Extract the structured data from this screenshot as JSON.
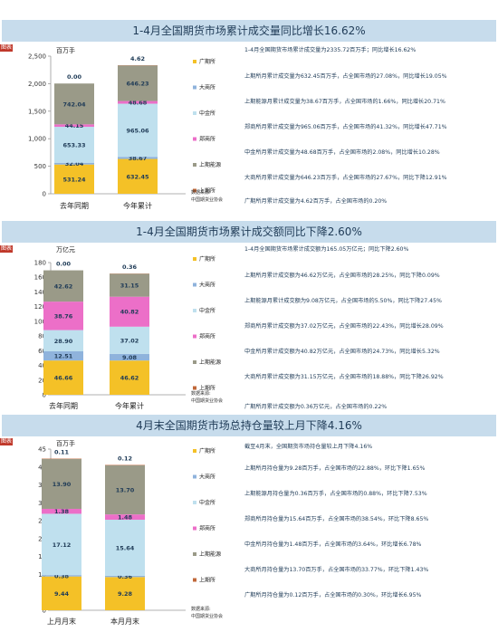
{
  "tag_label": "图表",
  "legend_labels": [
    "广期所",
    "大商所",
    "中金所",
    "郑商所",
    "上期能源",
    "上期所"
  ],
  "legend_colors": [
    "#f4c127",
    "#8fb3dc",
    "#bfe0ee",
    "#ec6fc8",
    "#9a9a88",
    "#c0683a"
  ],
  "source_label": "数据来源:",
  "source_org": "中国期货业协会",
  "panels": [
    {
      "title": "1-4月全国期货市场累计成交量同比增长16.62%",
      "unit": "百万手",
      "notes": [
        "1-4月全国期货市场累计成交量为2335.72百万手；同比增长16.62%",
        "上期所月累计成交量为632.45百万手，占全国市场的27.08%，同比增长19.05%",
        "上期能源月累计成交量为38.67百万手，占全国市场的1.66%，同比增长20.71%",
        "郑商所月累计成交量为965.06百万手，占全国市场的41.32%，同比增长47.71%",
        "中金所月累计成交量为48.68百万手，占全国市场的2.08%，同比增长10.28%",
        "大商所月累计成交量为646.23百万手，占全国市场的27.67%，同比下降12.91%",
        "广期所月累计成交量为4.62百万手，占全国市场的0.20%"
      ]
    },
    {
      "title": "1-4月全国期货市场累计成交额同比下降2.60%",
      "unit": "万亿元",
      "notes": [
        "1-4月全国期货市场累计成交额为165.05万亿元；同比下降2.60%",
        "上期所月累计成交额为46.62万亿元，占全国市场的28.25%，同比下降0.09%",
        "上期能源月累计成交额为9.08万亿元，占全国市场的5.50%，同比下降27.45%",
        "郑商所月累计成交额为37.02万亿元，占全国市场的22.43%，同比增长28.09%",
        "中金所月累计成交额为40.82万亿元，占全国市场的24.73%，同比增长5.32%",
        "大商所月累计成交额为31.15万亿元，占全国市场的18.88%，同比下降26.92%",
        "广期所月累计成交额为0.36万亿元，占全国市场的0.22%"
      ]
    },
    {
      "title": "4月末全国期货市场总持仓量较上月下降4.16%",
      "unit": "百万手",
      "notes": [
        "截至4月末，全国期货市场持仓量较上月下降4.16%",
        "上期所月持仓量为9.28百万手，占全国市场的22.88%，环比下降1.65%",
        "上期能源月持仓量为0.36百万手，占全国市场的0.88%，环比下降7.53%",
        "郑商所月持仓量为15.64百万手，占全国市场的38.54%，环比下降8.65%",
        "中金所月持仓量为1.48百万手，占全国市场的3.64%，环比增长6.78%",
        "大商所月持仓量为13.70百万手，占全国市场的33.77%，环比下降1.43%",
        "广期所月持仓量为0.12百万手，占全国市场的0.30%，环比增长6.95%"
      ]
    }
  ],
  "chart_data": [
    {
      "type": "bar",
      "stacked": true,
      "categories": [
        "去年同期",
        "今年累计"
      ],
      "ylim": [
        0,
        2500
      ],
      "yticks": [
        0,
        500,
        1000,
        1500,
        2000,
        2500
      ],
      "ylabel": "百万手",
      "series": [
        {
          "name": "上期所",
          "values": [
            531.24,
            632.45
          ]
        },
        {
          "name": "上期能源",
          "values": [
            32.04,
            38.67
          ]
        },
        {
          "name": "郑商所",
          "values": [
            653.33,
            965.06
          ]
        },
        {
          "name": "中金所",
          "values": [
            44.15,
            48.68
          ]
        },
        {
          "name": "大商所",
          "values": [
            742.04,
            646.23
          ]
        },
        {
          "name": "广期所",
          "values": [
            0.0,
            4.62
          ]
        }
      ]
    },
    {
      "type": "bar",
      "stacked": true,
      "categories": [
        "去年同期",
        "今年累计"
      ],
      "ylim": [
        0,
        180
      ],
      "yticks": [
        0,
        20,
        40,
        60,
        80,
        100,
        120,
        140,
        160,
        180
      ],
      "ylabel": "万亿元",
      "series": [
        {
          "name": "上期所",
          "values": [
            46.66,
            46.62
          ]
        },
        {
          "name": "上期能源",
          "values": [
            12.51,
            9.08
          ]
        },
        {
          "name": "郑商所",
          "values": [
            28.9,
            37.02
          ]
        },
        {
          "name": "中金所",
          "values": [
            38.76,
            40.82
          ]
        },
        {
          "name": "大商所",
          "values": [
            42.62,
            31.15
          ]
        },
        {
          "name": "广期所",
          "values": [
            0.0,
            0.36
          ]
        }
      ]
    },
    {
      "type": "bar",
      "stacked": true,
      "categories": [
        "上月月末",
        "本月月末"
      ],
      "ylim": [
        0,
        45
      ],
      "yticks": [
        0,
        5,
        10,
        15,
        20,
        25,
        30,
        35,
        40,
        45
      ],
      "ylabel": "百万手",
      "series": [
        {
          "name": "上期所",
          "values": [
            9.44,
            9.28
          ]
        },
        {
          "name": "上期能源",
          "values": [
            0.38,
            0.36
          ]
        },
        {
          "name": "郑商所",
          "values": [
            17.12,
            15.64
          ]
        },
        {
          "name": "中金所",
          "values": [
            1.38,
            1.48
          ]
        },
        {
          "name": "大商所",
          "values": [
            13.9,
            13.7
          ]
        },
        {
          "name": "广期所",
          "values": [
            0.11,
            0.12
          ]
        }
      ]
    }
  ]
}
